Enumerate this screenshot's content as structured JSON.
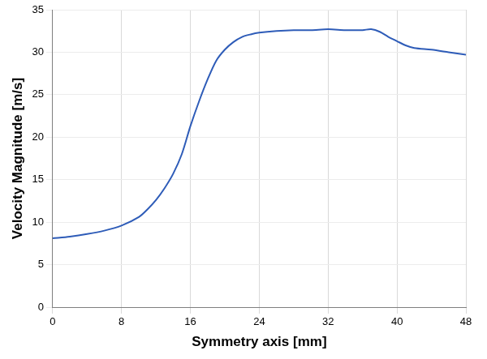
{
  "chart_data": {
    "type": "line",
    "x_label": "Symmetry axis [mm]",
    "y_label": "Velocity Magnitude [m/s]",
    "x": [
      0,
      2,
      4,
      6,
      8,
      10,
      11,
      12,
      13,
      14,
      15,
      16,
      17,
      18,
      19,
      20,
      21,
      22,
      23,
      24,
      26,
      28,
      30,
      32,
      34,
      36,
      37,
      38,
      39,
      40,
      41,
      42,
      44,
      46,
      48
    ],
    "values": [
      8.1,
      8.3,
      8.6,
      9.0,
      9.6,
      10.6,
      11.5,
      12.6,
      14.0,
      15.7,
      18.0,
      21.3,
      24.2,
      26.8,
      29.0,
      30.3,
      31.2,
      31.8,
      32.1,
      32.3,
      32.5,
      32.6,
      32.6,
      32.7,
      32.6,
      32.6,
      32.7,
      32.4,
      31.8,
      31.3,
      30.8,
      30.5,
      30.3,
      30.0,
      29.7
    ],
    "color": "#2e5cb8",
    "xlim": [
      0,
      48
    ],
    "xticks": [
      0,
      8,
      16,
      24,
      32,
      40,
      48
    ],
    "ylim": [
      0,
      35
    ],
    "yticks": [
      0,
      5,
      10,
      15,
      20,
      25,
      30,
      35
    ],
    "grid": true
  }
}
